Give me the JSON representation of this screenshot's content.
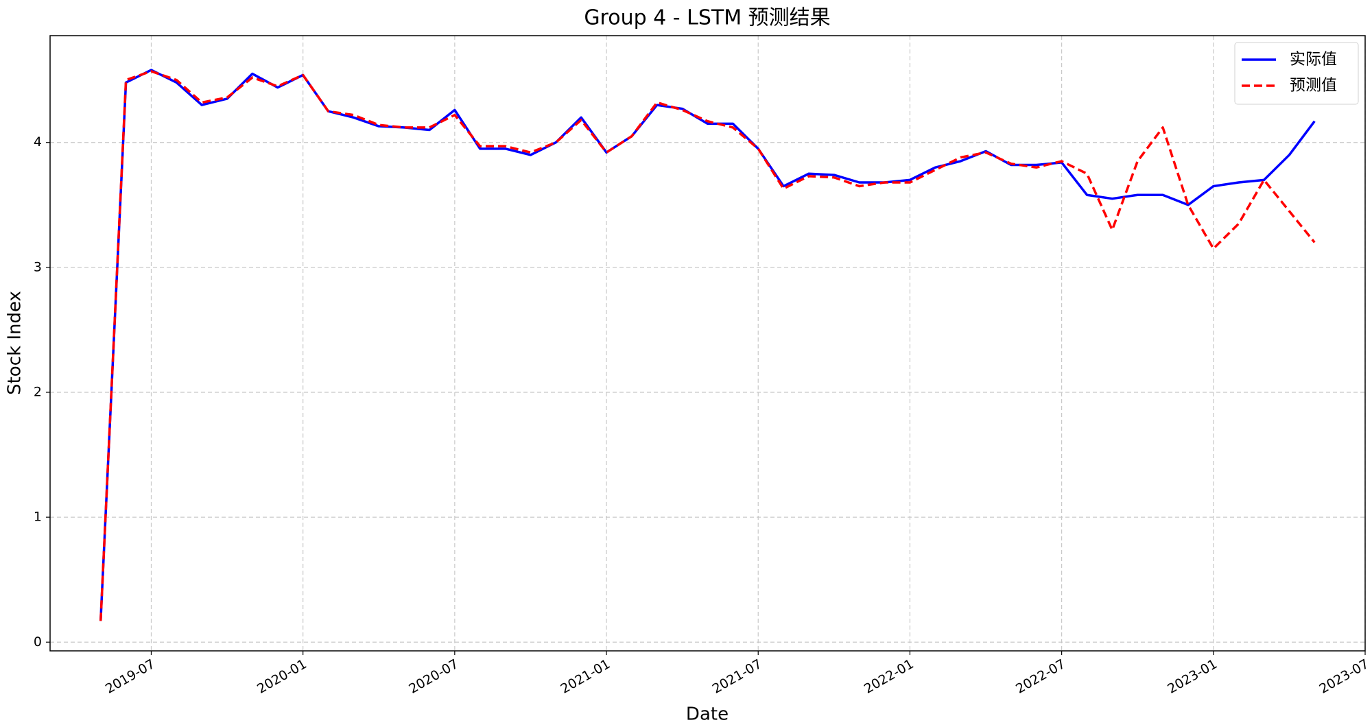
{
  "chart_data": {
    "type": "line",
    "title": "Group 4 - LSTM 预测结果",
    "x_label": "Date",
    "y_label": "Stock Index",
    "x": [
      "2019-05",
      "2019-06",
      "2019-07",
      "2019-08",
      "2019-09",
      "2019-10",
      "2019-11",
      "2019-12",
      "2020-01",
      "2020-02",
      "2020-03",
      "2020-04",
      "2020-05",
      "2020-06",
      "2020-07",
      "2020-08",
      "2020-09",
      "2020-10",
      "2020-11",
      "2020-12",
      "2021-01",
      "2021-02",
      "2021-03",
      "2021-04",
      "2021-05",
      "2021-06",
      "2021-07",
      "2021-08",
      "2021-09",
      "2021-10",
      "2021-11",
      "2021-12",
      "2022-01",
      "2022-02",
      "2022-03",
      "2022-04",
      "2022-05",
      "2022-06",
      "2022-07",
      "2022-08",
      "2022-09",
      "2022-10",
      "2022-11",
      "2022-12",
      "2023-01",
      "2023-02",
      "2023-03",
      "2023-04",
      "2023-05"
    ],
    "series": [
      {
        "name": "实际值",
        "color": "#0000ff",
        "style": "solid",
        "values": [
          0.17,
          4.48,
          4.58,
          4.48,
          4.3,
          4.35,
          4.55,
          4.44,
          4.54,
          4.25,
          4.2,
          4.13,
          4.12,
          4.1,
          4.26,
          3.95,
          3.95,
          3.9,
          4.0,
          4.2,
          3.92,
          4.05,
          4.3,
          4.27,
          4.15,
          4.15,
          3.95,
          3.65,
          3.75,
          3.74,
          3.68,
          3.68,
          3.7,
          3.8,
          3.85,
          3.93,
          3.82,
          3.82,
          3.84,
          3.58,
          3.55,
          3.58,
          3.58,
          3.5,
          3.65,
          3.68,
          3.7,
          3.9,
          4.17
        ]
      },
      {
        "name": "预测值",
        "color": "#ff0000",
        "style": "dashed",
        "values": [
          0.17,
          4.5,
          4.57,
          4.5,
          4.32,
          4.36,
          4.52,
          4.45,
          4.54,
          4.25,
          4.22,
          4.14,
          4.12,
          4.12,
          4.22,
          3.97,
          3.97,
          3.92,
          4.0,
          4.18,
          3.92,
          4.05,
          4.32,
          4.26,
          4.17,
          4.12,
          3.95,
          3.63,
          3.73,
          3.72,
          3.65,
          3.68,
          3.68,
          3.78,
          3.88,
          3.92,
          3.83,
          3.8,
          3.85,
          3.75,
          3.3,
          3.85,
          4.12,
          3.5,
          3.15,
          3.35,
          3.7,
          3.45,
          3.2
        ]
      }
    ],
    "xlim": [
      "2019-03",
      "2023-07"
    ],
    "xticks": [
      "2019-07",
      "2020-01",
      "2020-07",
      "2021-01",
      "2021-07",
      "2022-01",
      "2022-07",
      "2023-01",
      "2023-07"
    ],
    "ylim": [
      -0.07,
      4.855
    ],
    "yticks": [
      0,
      1,
      2,
      3,
      4
    ],
    "grid": true,
    "legend": "upper right"
  }
}
